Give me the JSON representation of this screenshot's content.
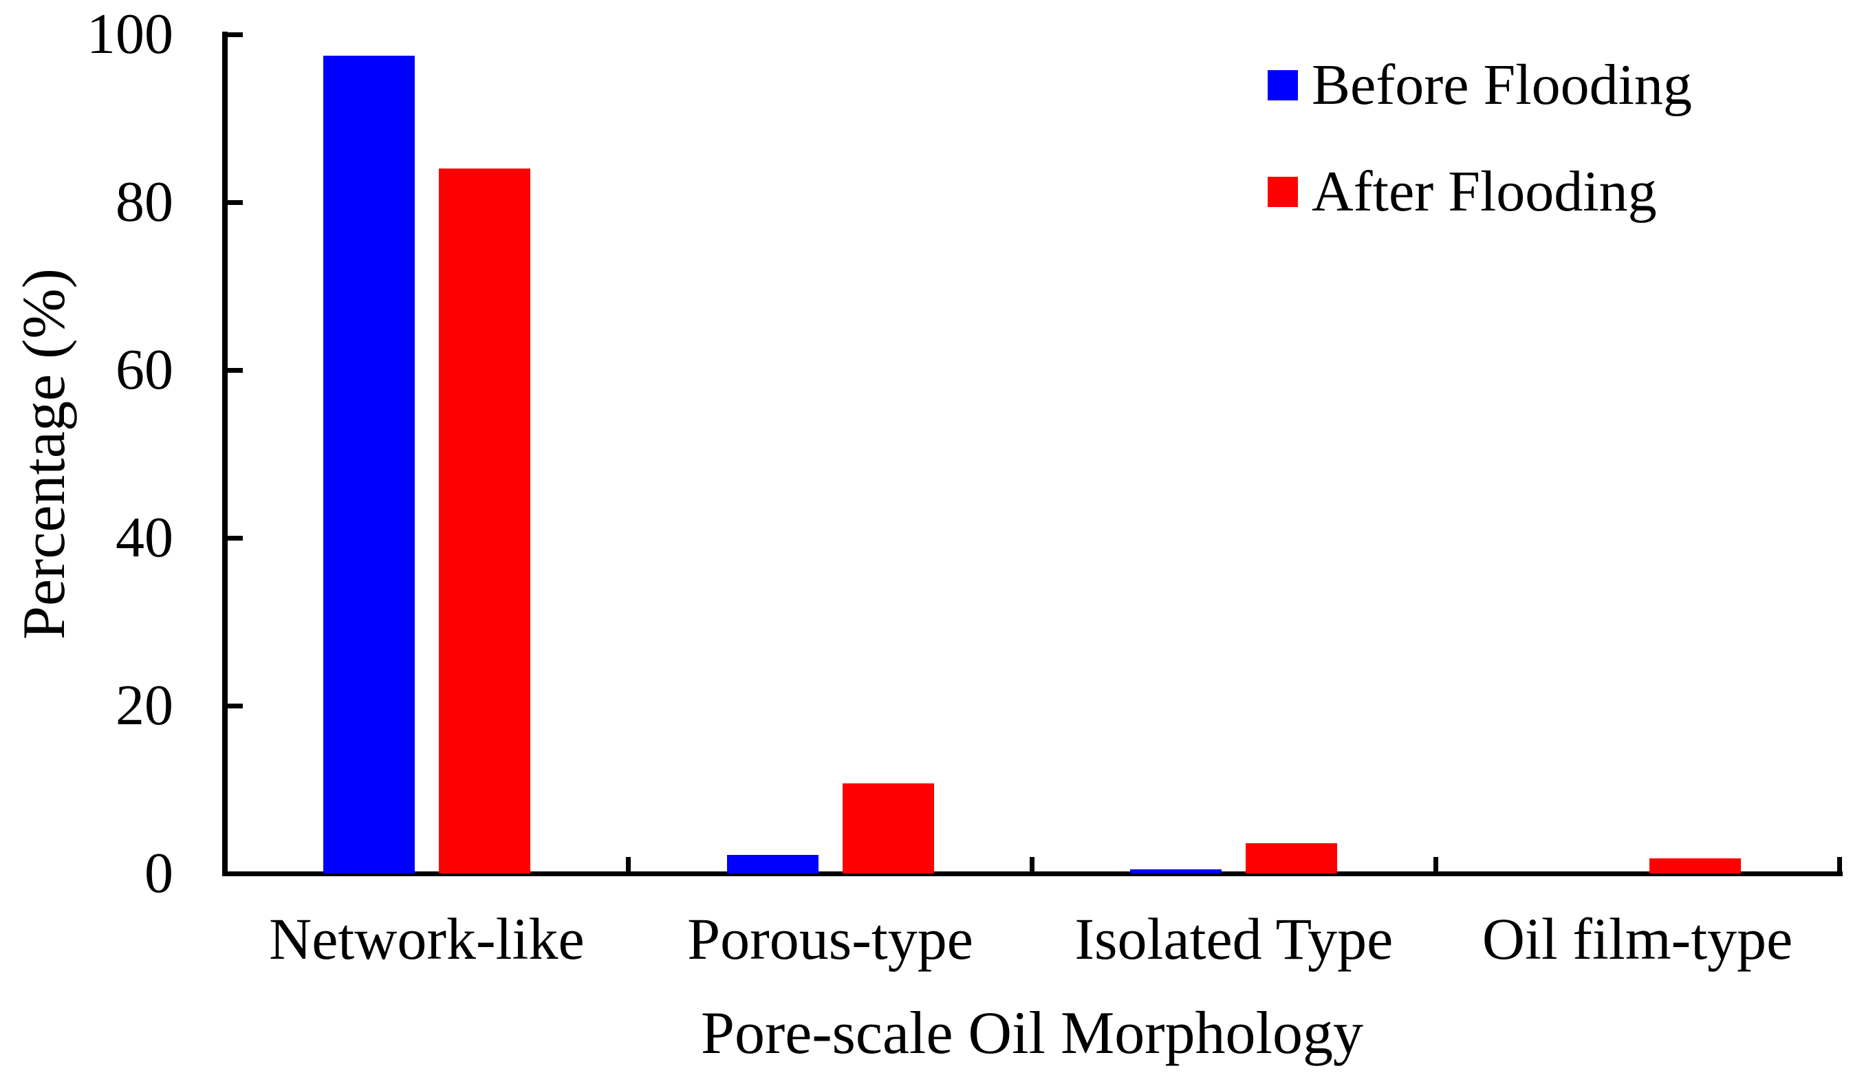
{
  "figure": {
    "background": "#ffffff",
    "axis_color": "#000000",
    "text_color": "#000000"
  },
  "chart_data": {
    "type": "bar",
    "title": "",
    "categories": [
      "Network-like",
      "Porous-type",
      "Isolated Type",
      "Oil film-type"
    ],
    "series": [
      {
        "name": "Before Flooding",
        "color": "#0000ff",
        "values": [
          97.5,
          2.2,
          0.5,
          0
        ]
      },
      {
        "name": "After Flooding",
        "color": "#ff0000",
        "values": [
          84,
          10.7,
          3.6,
          1.8
        ]
      }
    ],
    "xlabel": "Pore-scale Oil Morphology",
    "ylabel": "Percentage (%)",
    "ylim": [
      0,
      100
    ],
    "yticks": [
      0,
      20,
      40,
      60,
      80,
      100
    ],
    "ytick_labels": [
      "0",
      "20",
      "40",
      "60",
      "80",
      "100"
    ],
    "grid": false,
    "legend_position": "top-right",
    "bar_gap_in_pair": "small",
    "ticks_direction": "inward"
  }
}
